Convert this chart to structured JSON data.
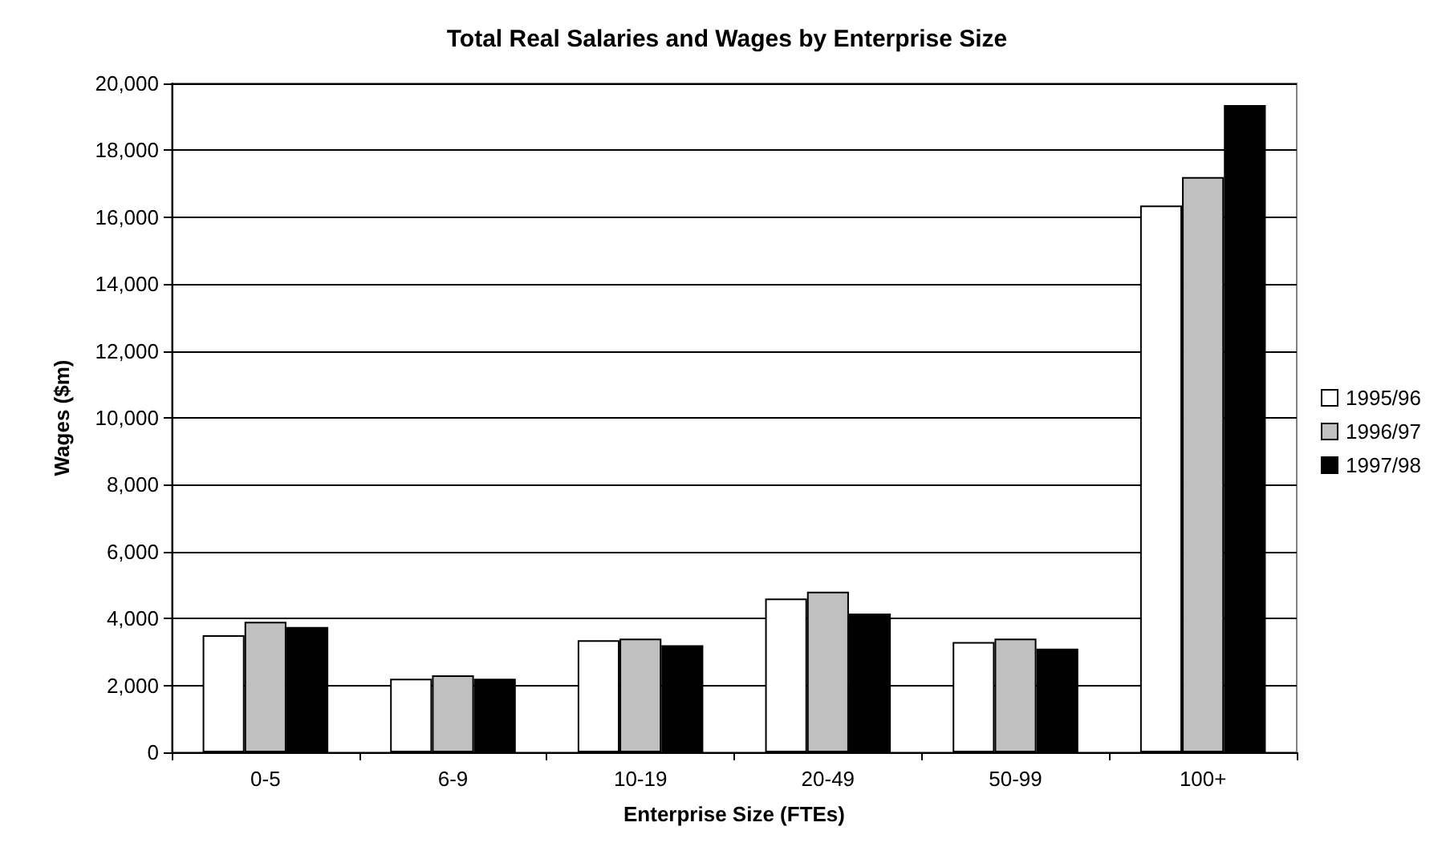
{
  "chart_data": {
    "type": "bar",
    "title": "Total Real Salaries and Wages by Enterprise Size",
    "xlabel": "Enterprise Size (FTEs)",
    "ylabel": "Wages ($m)",
    "categories": [
      "0-5",
      "6-9",
      "10-19",
      "20-49",
      "50-99",
      "100+"
    ],
    "series": [
      {
        "name": "1995/96",
        "color": "#ffffff",
        "values": [
          3500,
          2200,
          3350,
          4600,
          3300,
          16350
        ]
      },
      {
        "name": "1996/97",
        "color": "#c0c0c0",
        "values": [
          3900,
          2300,
          3400,
          4800,
          3400,
          17200
        ]
      },
      {
        "name": "1997/98",
        "color": "#000000",
        "values": [
          3750,
          2200,
          3200,
          4150,
          3100,
          19350
        ]
      }
    ],
    "ylim": [
      0,
      20000
    ],
    "yticks": [
      0,
      {
        "value": 2000,
        "label": "2,000"
      },
      {
        "value": 4000,
        "label": "4,000"
      },
      {
        "value": 6000,
        "label": "6,000"
      },
      {
        "value": 8000,
        "label": "8,000"
      },
      {
        "value": 10000,
        "label": "10,000"
      },
      {
        "value": 12000,
        "label": "12,000"
      },
      {
        "value": 14000,
        "label": "14,000"
      },
      {
        "value": 16000,
        "label": "16,000"
      },
      {
        "value": 18000,
        "label": "18,000"
      },
      {
        "value": 20000,
        "label": "20,000"
      }
    ],
    "grid": "y",
    "legend": "right"
  }
}
